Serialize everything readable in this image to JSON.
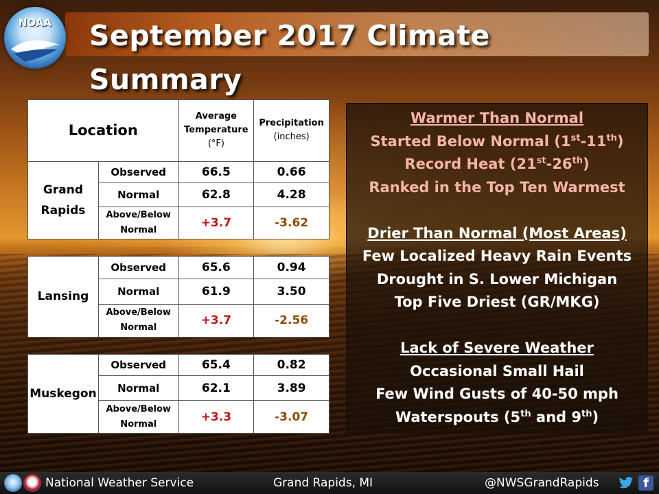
{
  "header": {
    "title": "September 2017 Climate Summary",
    "logo_text": "NOAA"
  },
  "table": {
    "location_header": "Location",
    "temp_header": "Average Temperature",
    "temp_unit": "(°F)",
    "precip_header": "Precipitation",
    "precip_unit": "(inches)",
    "row_labels": {
      "observed": "Observed",
      "normal": "Normal",
      "departure_line1": "Above/Below",
      "departure_line2": "Normal"
    },
    "locations": [
      {
        "name_line1": "Grand",
        "name_line2": "Rapids",
        "observed": {
          "temp": "66.5",
          "precip": "0.66"
        },
        "normal": {
          "temp": "62.8",
          "precip": "4.28"
        },
        "departure": {
          "temp": "+3.7",
          "precip": "-3.62"
        }
      },
      {
        "name_line1": "Lansing",
        "observed": {
          "temp": "65.6",
          "precip": "0.94"
        },
        "normal": {
          "temp": "61.9",
          "precip": "3.50"
        },
        "departure": {
          "temp": "+3.7",
          "precip": "-2.56"
        }
      },
      {
        "name_line1": "Muskegon",
        "observed": {
          "temp": "65.4",
          "precip": "0.82"
        },
        "normal": {
          "temp": "62.1",
          "precip": "3.89"
        },
        "departure": {
          "temp": "+3.3",
          "precip": "-3.07"
        }
      }
    ]
  },
  "summary": {
    "warm": {
      "heading": "Warmer Than Normal",
      "l1_a": "Started Below Normal (1",
      "l1_b": "st",
      "l1_c": "-11",
      "l1_d": "th",
      "l1_e": ")",
      "l2_a": "Record Heat (21",
      "l2_b": "st",
      "l2_c": "-26",
      "l2_d": "th",
      "l2_e": ")",
      "l3": "Ranked in the Top Ten Warmest"
    },
    "dry": {
      "heading": "Drier Than Normal (Most Areas)",
      "l1": "Few Localized Heavy Rain Events",
      "l2": "Drought in S. Lower Michigan",
      "l3": "Top Five Driest (GR/MKG)"
    },
    "severe": {
      "heading": "Lack of Severe Weather",
      "l1": "Occasional Small Hail",
      "l2": "Few Wind Gusts of 40-50 mph",
      "l3_a": "Waterspouts (5",
      "l3_b": "th",
      "l3_c": " and 9",
      "l3_d": "th",
      "l3_e": ")"
    }
  },
  "footer": {
    "office": "National Weather Service",
    "city": "Grand Rapids, MI",
    "handle": "@NWSGrandRapids",
    "twitter_icon": "twitter-icon",
    "facebook_icon": "facebook-icon",
    "facebook_glyph": "f"
  },
  "colors": {
    "accent_red": "#c0141c",
    "accent_brown": "#8a4e08",
    "summary_pink": "#f6b3a9"
  }
}
